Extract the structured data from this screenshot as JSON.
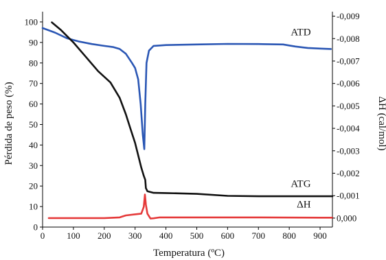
{
  "chart_data": {
    "type": "line",
    "xlabel": "Temperatura (ºC)",
    "ylabel_left": "Pérdida de peso (%)",
    "ylabel_right": "ΔH (cal/mol)",
    "xlim": [
      0,
      940
    ],
    "ylim_left": [
      0,
      105
    ],
    "ylim_right": [
      0.0004,
      -0.0092
    ],
    "x_ticks": [
      0,
      100,
      200,
      300,
      400,
      500,
      600,
      700,
      800,
      900
    ],
    "y_left_ticks": [
      0,
      10,
      20,
      30,
      40,
      50,
      60,
      70,
      80,
      90,
      100
    ],
    "y_right_ticks": [
      {
        "value": 0.0,
        "label": "0,000"
      },
      {
        "value": -0.001,
        "label": "-0,001"
      },
      {
        "value": -0.002,
        "label": "-0,002"
      },
      {
        "value": -0.003,
        "label": "-0,003"
      },
      {
        "value": -0.004,
        "label": "-0,004"
      },
      {
        "value": -0.005,
        "label": "-0,005"
      },
      {
        "value": -0.006,
        "label": "-0,006"
      },
      {
        "value": -0.007,
        "label": "-0,007"
      },
      {
        "value": -0.008,
        "label": "-0,008"
      },
      {
        "value": -0.009,
        "label": "-0,009"
      }
    ],
    "series": [
      {
        "name": "ATD",
        "axis": "left",
        "color": "#2a56b4",
        "points": [
          [
            0,
            97
          ],
          [
            40,
            94.8
          ],
          [
            80,
            92
          ],
          [
            120,
            90.4
          ],
          [
            160,
            89.2
          ],
          [
            200,
            88.3
          ],
          [
            230,
            87.7
          ],
          [
            250,
            86.8
          ],
          [
            270,
            84.5
          ],
          [
            290,
            80
          ],
          [
            300,
            77.5
          ],
          [
            310,
            72
          ],
          [
            318,
            60
          ],
          [
            325,
            45
          ],
          [
            330,
            38
          ],
          [
            333,
            60
          ],
          [
            337,
            80
          ],
          [
            345,
            86
          ],
          [
            360,
            88.3
          ],
          [
            400,
            88.7
          ],
          [
            500,
            89
          ],
          [
            600,
            89.3
          ],
          [
            700,
            89.2
          ],
          [
            780,
            89
          ],
          [
            820,
            88
          ],
          [
            860,
            87.3
          ],
          [
            900,
            87
          ],
          [
            935,
            86.8
          ]
        ]
      },
      {
        "name": "ATG",
        "axis": "left",
        "color": "#111111",
        "points": [
          [
            30,
            99.8
          ],
          [
            60,
            96
          ],
          [
            100,
            90
          ],
          [
            140,
            83
          ],
          [
            180,
            76
          ],
          [
            220,
            70.5
          ],
          [
            250,
            63
          ],
          [
            270,
            55
          ],
          [
            285,
            48
          ],
          [
            300,
            41
          ],
          [
            310,
            35
          ],
          [
            320,
            29
          ],
          [
            328,
            25
          ],
          [
            333,
            23
          ],
          [
            335,
            19
          ],
          [
            340,
            17.5
          ],
          [
            360,
            16.7
          ],
          [
            400,
            16.6
          ],
          [
            500,
            16.2
          ],
          [
            600,
            15.2
          ],
          [
            700,
            15
          ],
          [
            800,
            15
          ],
          [
            900,
            15
          ],
          [
            940,
            15
          ]
        ]
      },
      {
        "name": "ΔH",
        "axis": "right",
        "color": "#e53a3a",
        "points": [
          [
            20,
            0.0
          ],
          [
            100,
            0.0
          ],
          [
            200,
            0.0
          ],
          [
            250,
            -3e-05
          ],
          [
            270,
            -0.00012
          ],
          [
            300,
            -0.00017
          ],
          [
            320,
            -0.0002
          ],
          [
            328,
            -0.0005
          ],
          [
            332,
            -0.00105
          ],
          [
            335,
            -0.0006
          ],
          [
            340,
            -0.0002
          ],
          [
            350,
            2e-05
          ],
          [
            360,
            1e-05
          ],
          [
            380,
            -3e-05
          ],
          [
            500,
            -3e-05
          ],
          [
            700,
            -3e-05
          ],
          [
            900,
            -2e-05
          ],
          [
            940,
            -2e-05
          ]
        ]
      }
    ],
    "series_labels": [
      {
        "text": "ATD",
        "x": 870,
        "y": 93.5,
        "axis": "left"
      },
      {
        "text": "ATG",
        "x": 870,
        "y": 19.5,
        "axis": "left"
      },
      {
        "text": "ΔH",
        "x": 870,
        "y": 9.5,
        "axis": "left"
      }
    ]
  }
}
